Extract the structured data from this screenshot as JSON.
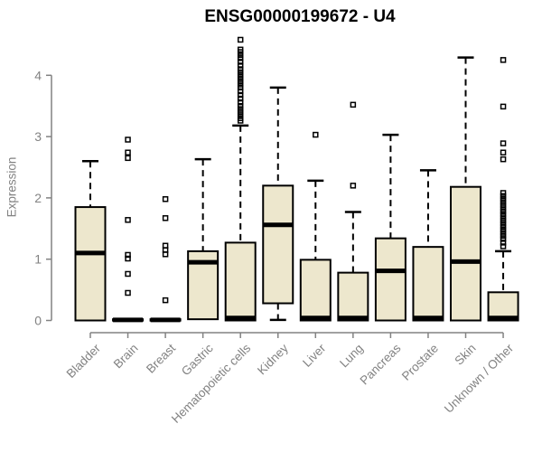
{
  "chart_data": {
    "type": "boxplot",
    "title": "ENSG00000199672 - U4",
    "ylabel": "Expression",
    "xlabel": "",
    "yticks": [
      0,
      1,
      2,
      3,
      4
    ],
    "ylim": [
      0,
      4.65
    ],
    "grid": false,
    "legend": false,
    "marker": "open-square",
    "colors": {
      "box_fill": "#EDE7CD",
      "box_stroke": "#000000",
      "median": "#000000",
      "whisker": "#000000",
      "outlier": "#000000",
      "axis": "#828282",
      "tick_label": "#828282",
      "title": "#000000"
    },
    "categories": [
      "Bladder",
      "Brain",
      "Breast",
      "Gastric",
      "Hematopoietic cells",
      "Kidney",
      "Liver",
      "Lung",
      "Pancreas",
      "Prostate",
      "Skin",
      "Unknown / Other"
    ],
    "boxes": [
      {
        "category": "Bladder",
        "whisker_low": 0,
        "q1": 0,
        "median": 1.1,
        "q3": 1.85,
        "whisker_high": 2.6,
        "outliers": []
      },
      {
        "category": "Brain",
        "whisker_low": 0,
        "q1": 0,
        "median": 0.01,
        "q3": 0.02,
        "whisker_high": 0.02,
        "outliers": [
          2.95,
          2.74,
          2.65,
          1.64,
          1.07,
          1.01,
          0.76,
          0.45
        ]
      },
      {
        "category": "Breast",
        "whisker_low": 0,
        "q1": 0,
        "median": 0.01,
        "q3": 0.02,
        "whisker_high": 0.02,
        "outliers": [
          1.98,
          1.67,
          1.22,
          1.15,
          1.08,
          0.33
        ]
      },
      {
        "category": "Gastric",
        "whisker_low": 0,
        "q1": 0.02,
        "median": 0.95,
        "q3": 1.13,
        "whisker_high": 2.63,
        "outliers": []
      },
      {
        "category": "Hematopoietic cells",
        "whisker_low": 0,
        "q1": 0,
        "median": 0.04,
        "q3": 1.27,
        "whisker_high": 3.18,
        "outliers": [
          4.58,
          4.42,
          4.38,
          4.33,
          4.28,
          4.22,
          4.16,
          4.1,
          4.05,
          4.0,
          3.95,
          3.9,
          3.85,
          3.8,
          3.74,
          3.68,
          3.62,
          3.56,
          3.5,
          3.45,
          3.4,
          3.35,
          3.3,
          3.26
        ]
      },
      {
        "category": "Kidney",
        "whisker_low": 0.01,
        "q1": 0.28,
        "median": 1.56,
        "q3": 2.2,
        "whisker_high": 3.8,
        "outliers": []
      },
      {
        "category": "Liver",
        "whisker_low": 0,
        "q1": 0,
        "median": 0.04,
        "q3": 0.99,
        "whisker_high": 2.28,
        "outliers": [
          3.03
        ]
      },
      {
        "category": "Lung",
        "whisker_low": 0,
        "q1": 0,
        "median": 0.04,
        "q3": 0.78,
        "whisker_high": 1.77,
        "outliers": [
          3.52,
          2.2
        ]
      },
      {
        "category": "Pancreas",
        "whisker_low": 0,
        "q1": 0,
        "median": 0.81,
        "q3": 1.34,
        "whisker_high": 3.03,
        "outliers": []
      },
      {
        "category": "Prostate",
        "whisker_low": 0,
        "q1": 0,
        "median": 0.04,
        "q3": 1.2,
        "whisker_high": 2.45,
        "outliers": []
      },
      {
        "category": "Skin",
        "whisker_low": 0,
        "q1": 0,
        "median": 0.96,
        "q3": 2.18,
        "whisker_high": 4.29,
        "outliers": []
      },
      {
        "category": "Unknown / Other",
        "whisker_low": 0,
        "q1": 0,
        "median": 0.04,
        "q3": 0.46,
        "whisker_high": 1.13,
        "outliers": [
          4.25,
          3.49,
          2.89,
          2.74,
          2.63,
          2.08,
          2.03,
          1.98,
          1.93,
          1.88,
          1.83,
          1.78,
          1.73,
          1.68,
          1.63,
          1.58,
          1.53,
          1.48,
          1.43,
          1.38,
          1.33,
          1.27,
          1.21
        ]
      }
    ]
  }
}
